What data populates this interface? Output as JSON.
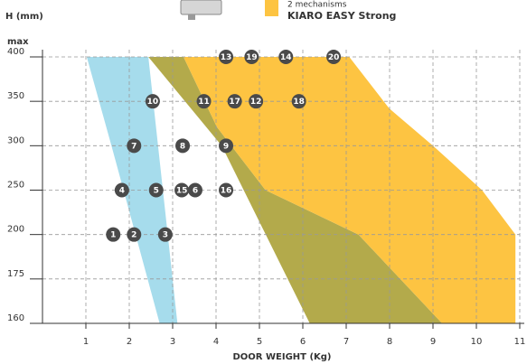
{
  "chart_data": {
    "type": "scatter",
    "y_label": "H (mm)",
    "y_top_label": "max",
    "x_label": "DOOR WEIGHT (Kg)",
    "legend": {
      "color": "#fdc442",
      "subtitle": "2 mechanisms",
      "title": "KIARO EASY Strong"
    },
    "xlim": [
      0,
      11
    ],
    "xticks": [
      1,
      2,
      3,
      4,
      5,
      6,
      7,
      8,
      9,
      10,
      11
    ],
    "ylim": [
      160,
      400
    ],
    "yticks": [
      160,
      175,
      200,
      250,
      300,
      350,
      400
    ],
    "grid": true,
    "areas": [
      {
        "color": "#a6dcec",
        "x": [
          1.02,
          2.44,
          3.11,
          2.7,
          1.59
        ],
        "y": [
          400,
          400,
          160,
          160,
          300
        ]
      },
      {
        "color": "#b3aa4b",
        "x": [
          2.44,
          3.25,
          4.02,
          5.14,
          7.28,
          9.21,
          6.16,
          4.13
        ],
        "y": [
          400,
          400,
          321,
          250,
          200,
          160,
          160,
          300
        ]
      },
      {
        "color": "#fdc442",
        "x": [
          3.25,
          7.07,
          7.99,
          9.0,
          10.13,
          10.9,
          10.9,
          9.21,
          7.28,
          5.14,
          4.02
        ],
        "y": [
          400,
          400,
          342,
          300,
          250,
          200,
          160,
          160,
          200,
          250,
          321
        ]
      }
    ],
    "points": {
      "color": "#4a4a4a",
      "labels": [
        1,
        2,
        3,
        4,
        5,
        15,
        6,
        16,
        7,
        8,
        9,
        10,
        11,
        17,
        12,
        18,
        13,
        19,
        14,
        20
      ],
      "x": [
        1.63,
        2.11,
        2.83,
        1.83,
        2.62,
        3.21,
        3.52,
        4.23,
        2.11,
        3.23,
        4.23,
        2.54,
        3.72,
        4.43,
        4.92,
        5.91,
        4.23,
        4.82,
        5.61,
        6.71
      ],
      "y": [
        200,
        200,
        200,
        250,
        250,
        250,
        250,
        250,
        300,
        300,
        300,
        350,
        350,
        350,
        350,
        350,
        400,
        400,
        400,
        400
      ]
    }
  }
}
